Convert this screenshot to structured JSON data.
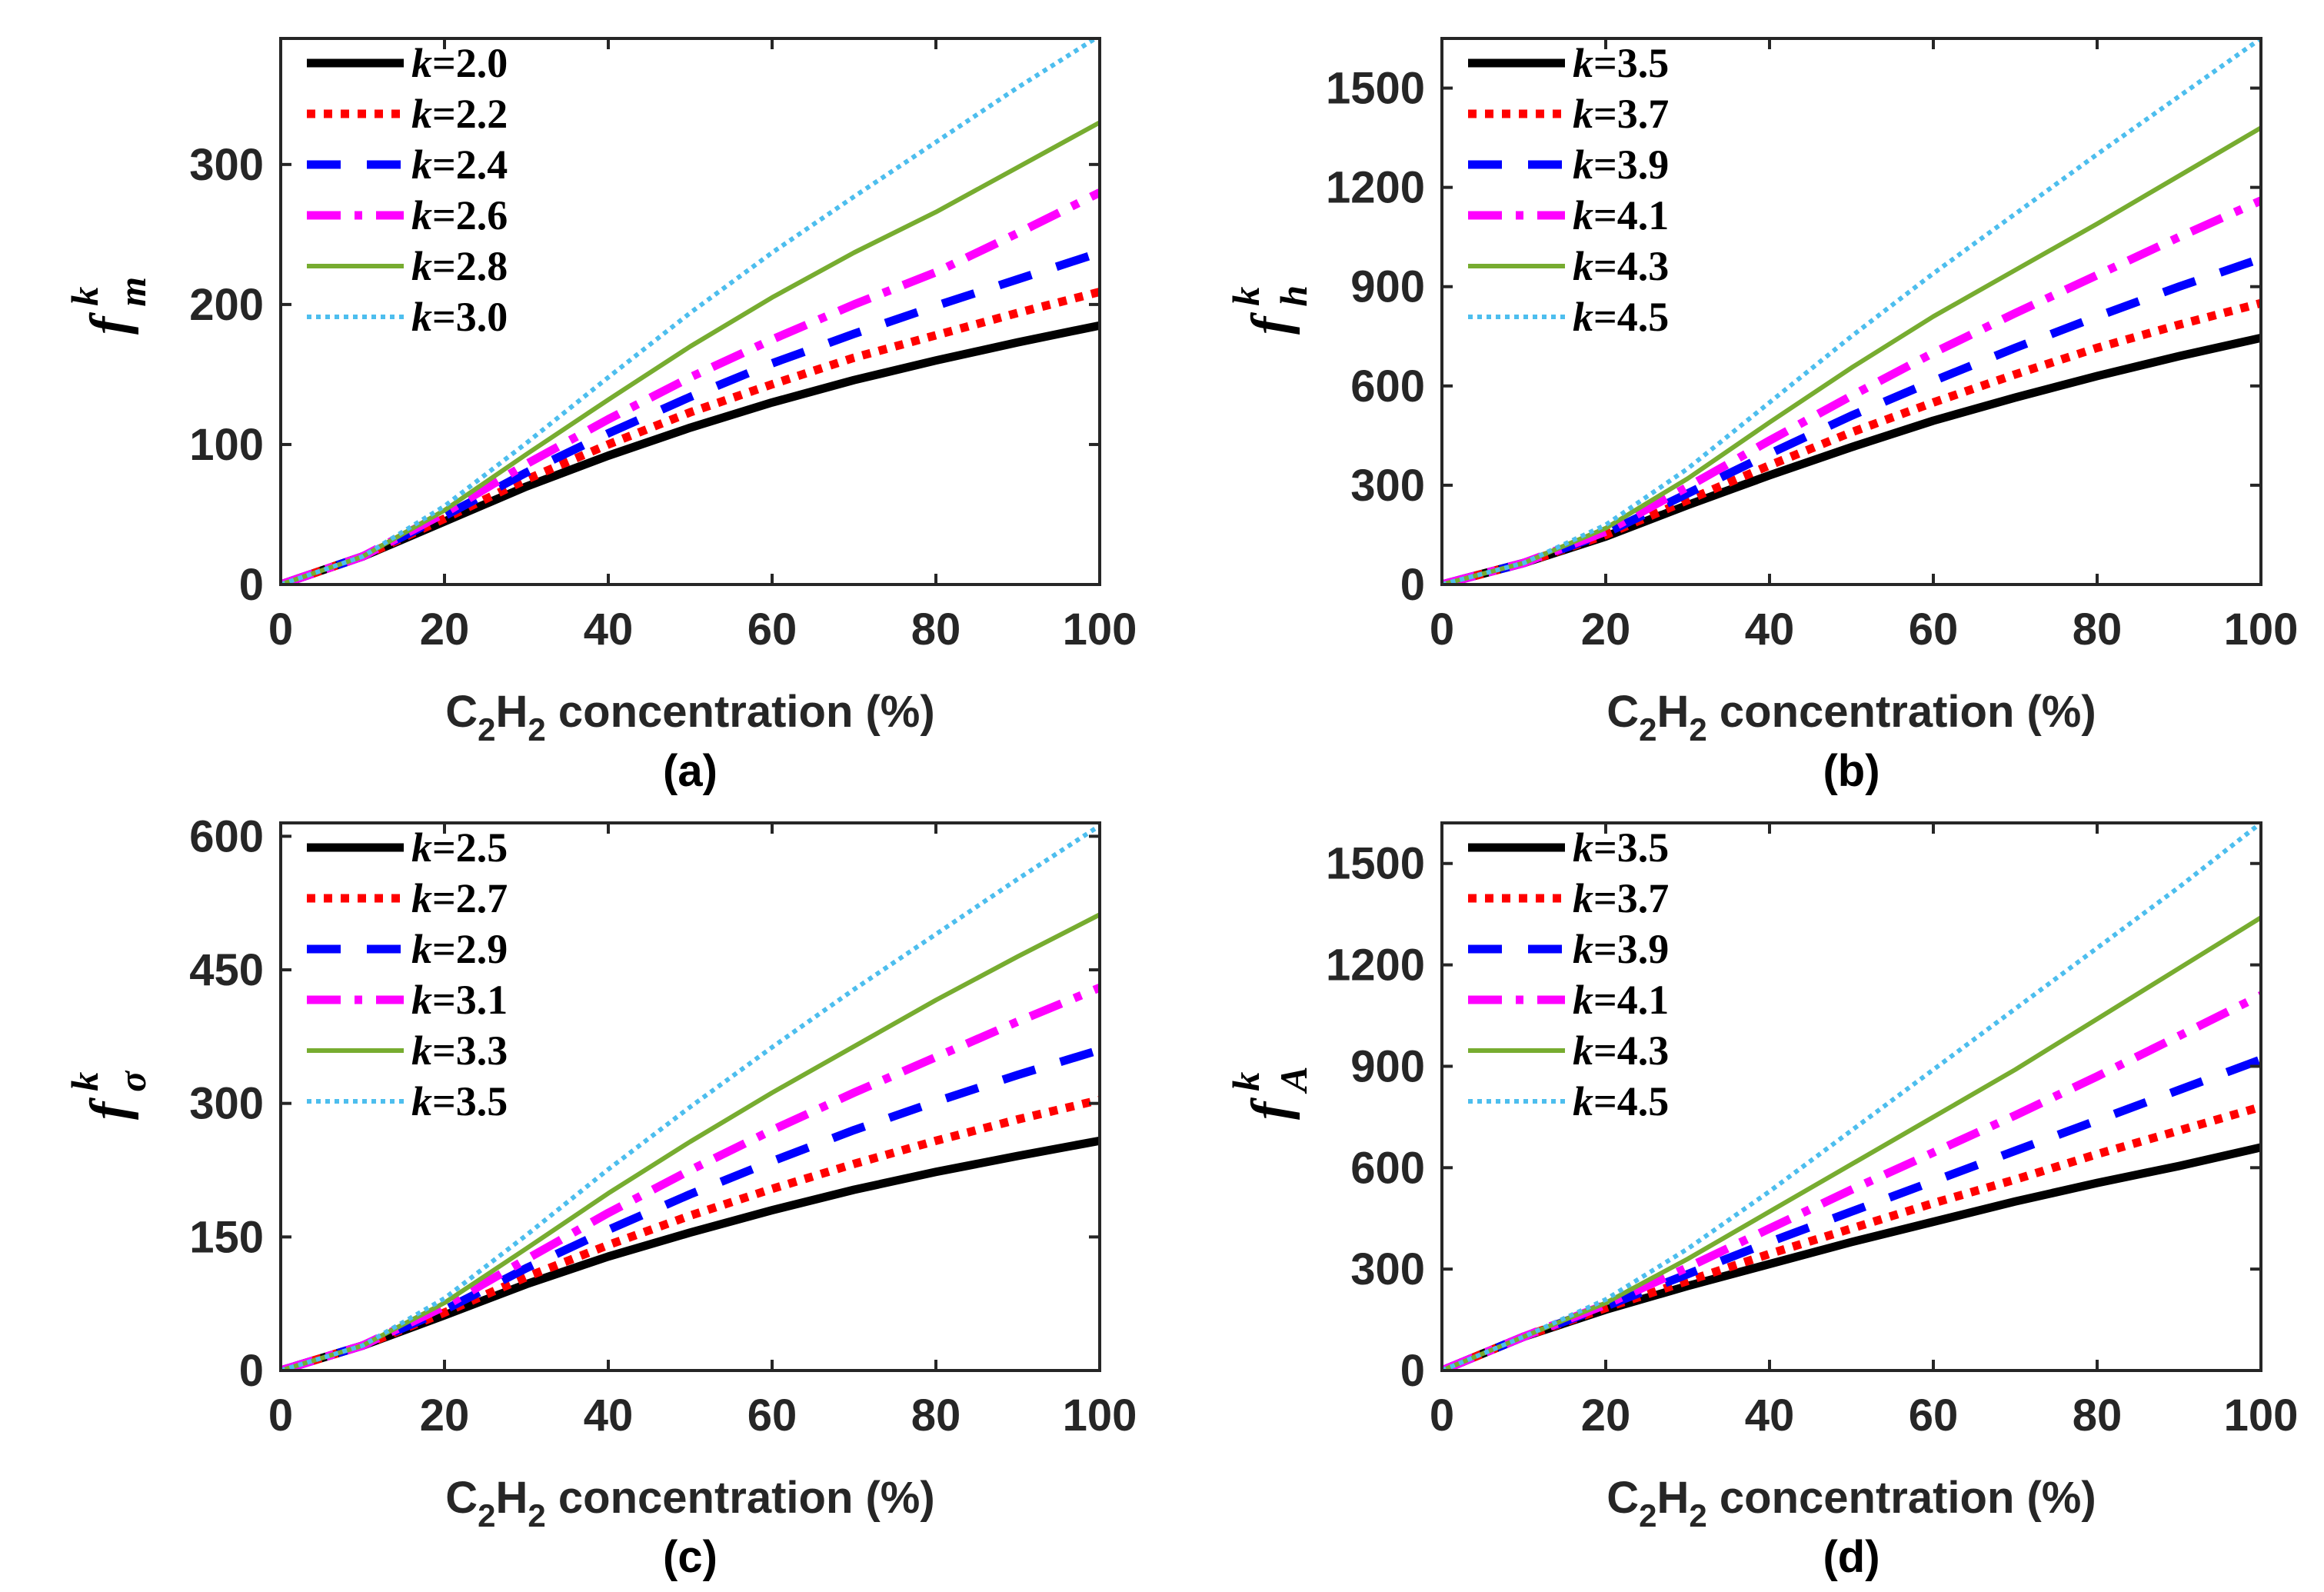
{
  "chart_data": [
    {
      "type": "line",
      "panel": "(a)",
      "ylabel": {
        "base": "f",
        "sup": "k",
        "sub": "m"
      },
      "xlabel": {
        "pre": "C",
        "sub1": "2",
        "mid": "H",
        "sub2": "2",
        "post": " concentration (%)"
      },
      "xlim": [
        0,
        100
      ],
      "ylim": [
        0,
        390
      ],
      "xticks": [
        0,
        20,
        40,
        60,
        80,
        100
      ],
      "yticks": [
        0,
        100,
        200,
        300
      ],
      "legend_loc": "top-left",
      "x": [
        0,
        10,
        20,
        30,
        40,
        50,
        60,
        70,
        80,
        90,
        100
      ],
      "series": [
        {
          "name": "k=2.0",
          "k": "2.0",
          "style": "solid",
          "color": "#000000",
          "width": 11,
          "values": [
            0,
            20,
            45,
            70,
            92,
            112,
            130,
            146,
            160,
            173,
            185
          ]
        },
        {
          "name": "k=2.2",
          "k": "2.2",
          "style": "dotted",
          "color": "#ff0000",
          "width": 11,
          "values": [
            0,
            20,
            47,
            75,
            100,
            123,
            143,
            162,
            178,
            194,
            209
          ]
        },
        {
          "name": "k=2.4",
          "k": "2.4",
          "style": "dashed",
          "color": "#0000ff",
          "width": 11,
          "values": [
            0,
            20,
            49,
            80,
            108,
            134,
            158,
            179,
            199,
            218,
            237
          ]
        },
        {
          "name": "k=2.6",
          "k": "2.6",
          "style": "dashdot",
          "color": "#ff00ff",
          "width": 11,
          "values": [
            0,
            20,
            51,
            86,
            118,
            148,
            175,
            200,
            223,
            251,
            280
          ]
        },
        {
          "name": "k=2.8",
          "k": "2.8",
          "style": "solid",
          "color": "#77ac30",
          "width": 6,
          "values": [
            0,
            20,
            53,
            93,
            132,
            170,
            205,
            237,
            266,
            298,
            330
          ]
        },
        {
          "name": "k=3.0",
          "k": "3.0",
          "style": "dot",
          "color": "#4dbeee",
          "width": 6,
          "values": [
            0,
            20,
            56,
            101,
            148,
            194,
            237,
            277,
            316,
            355,
            392
          ]
        }
      ]
    },
    {
      "type": "line",
      "panel": "(b)",
      "ylabel": {
        "base": "f",
        "sup": "k",
        "sub": "h"
      },
      "xlabel": {
        "pre": "C",
        "sub1": "2",
        "mid": "H",
        "sub2": "2",
        "post": " concentration (%)"
      },
      "xlim": [
        0,
        100
      ],
      "ylim": [
        0,
        1650
      ],
      "xticks": [
        0,
        20,
        40,
        60,
        80,
        100
      ],
      "yticks": [
        0,
        300,
        600,
        900,
        1200,
        1500
      ],
      "legend_loc": "top-left",
      "x": [
        0,
        10,
        20,
        30,
        40,
        50,
        60,
        70,
        80,
        90,
        100
      ],
      "series": [
        {
          "name": "k=3.5",
          "k": "3.5",
          "style": "solid",
          "color": "#000000",
          "width": 11,
          "values": [
            0,
            65,
            145,
            240,
            330,
            415,
            495,
            565,
            630,
            690,
            745
          ]
        },
        {
          "name": "k=3.7",
          "k": "3.7",
          "style": "dotted",
          "color": "#ff0000",
          "width": 11,
          "values": [
            0,
            65,
            150,
            255,
            360,
            460,
            550,
            635,
            715,
            785,
            850
          ]
        },
        {
          "name": "k=3.9",
          "k": "3.9",
          "style": "dashed",
          "color": "#0000ff",
          "width": 11,
          "values": [
            0,
            65,
            155,
            275,
            395,
            510,
            615,
            715,
            810,
            900,
            985
          ]
        },
        {
          "name": "k=4.1",
          "k": "4.1",
          "style": "dashdot",
          "color": "#ff00ff",
          "width": 11,
          "values": [
            0,
            65,
            160,
            295,
            435,
            570,
            700,
            820,
            935,
            1050,
            1160
          ]
        },
        {
          "name": "k=4.3",
          "k": "4.3",
          "style": "solid",
          "color": "#77ac30",
          "width": 6,
          "values": [
            0,
            65,
            170,
            320,
            490,
            655,
            810,
            950,
            1090,
            1235,
            1380
          ]
        },
        {
          "name": "k=4.5",
          "k": "4.5",
          "style": "dot",
          "color": "#4dbeee",
          "width": 6,
          "values": [
            0,
            65,
            180,
            350,
            550,
            750,
            940,
            1120,
            1300,
            1475,
            1650
          ]
        }
      ]
    },
    {
      "type": "line",
      "panel": "(c)",
      "ylabel": {
        "base": "f",
        "sup": "k",
        "sub": "σ"
      },
      "xlabel": {
        "pre": "C",
        "sub1": "2",
        "mid": "H",
        "sub2": "2",
        "post": " concentration (%)"
      },
      "xlim": [
        0,
        100
      ],
      "ylim": [
        0,
        615
      ],
      "xticks": [
        0,
        20,
        40,
        60,
        80,
        100
      ],
      "yticks": [
        0,
        150,
        300,
        450,
        600
      ],
      "legend_loc": "top-left",
      "x": [
        0,
        10,
        20,
        30,
        40,
        50,
        60,
        70,
        80,
        90,
        100
      ],
      "series": [
        {
          "name": "k=2.5",
          "k": "2.5",
          "style": "solid",
          "color": "#000000",
          "width": 11,
          "values": [
            0,
            28,
            62,
            97,
            128,
            155,
            180,
            203,
            223,
            241,
            258
          ]
        },
        {
          "name": "k=2.7",
          "k": "2.7",
          "style": "dotted",
          "color": "#ff0000",
          "width": 11,
          "values": [
            0,
            28,
            65,
            105,
            141,
            174,
            204,
            232,
            258,
            282,
            304
          ]
        },
        {
          "name": "k=2.9",
          "k": "2.9",
          "style": "dashed",
          "color": "#0000ff",
          "width": 11,
          "values": [
            0,
            28,
            68,
            115,
            158,
            198,
            235,
            270,
            302,
            332,
            360
          ]
        },
        {
          "name": "k=3.1",
          "k": "3.1",
          "style": "dashdot",
          "color": "#ff00ff",
          "width": 11,
          "values": [
            0,
            28,
            72,
            125,
            177,
            225,
            270,
            312,
            352,
            392,
            430
          ]
        },
        {
          "name": "k=3.3",
          "k": "3.3",
          "style": "solid",
          "color": "#77ac30",
          "width": 6,
          "values": [
            0,
            28,
            76,
            137,
            199,
            257,
            312,
            364,
            416,
            465,
            512
          ]
        },
        {
          "name": "k=3.5",
          "k": "3.5",
          "style": "dot",
          "color": "#4dbeee",
          "width": 6,
          "values": [
            0,
            28,
            81,
            152,
            226,
            296,
            363,
            428,
            490,
            552,
            612
          ]
        }
      ]
    },
    {
      "type": "line",
      "panel": "(d)",
      "ylabel": {
        "base": "f",
        "sup": "k",
        "sub": "A"
      },
      "xlabel": {
        "pre": "C",
        "sub1": "2",
        "mid": "H",
        "sub2": "2",
        "post": " concentration (%)"
      },
      "xlim": [
        0,
        100
      ],
      "ylim": [
        0,
        1620
      ],
      "xticks": [
        0,
        20,
        40,
        60,
        80,
        100
      ],
      "yticks": [
        0,
        300,
        600,
        900,
        1200,
        1500
      ],
      "legend_loc": "top-left",
      "x": [
        0,
        10,
        20,
        30,
        40,
        50,
        60,
        70,
        80,
        90,
        100
      ],
      "series": [
        {
          "name": "k=3.5",
          "k": "3.5",
          "style": "solid",
          "color": "#000000",
          "width": 11,
          "values": [
            0,
            100,
            180,
            250,
            315,
            380,
            440,
            500,
            555,
            605,
            660
          ]
        },
        {
          "name": "k=3.7",
          "k": "3.7",
          "style": "dotted",
          "color": "#ff0000",
          "width": 11,
          "values": [
            0,
            100,
            185,
            265,
            345,
            420,
            495,
            565,
            640,
            710,
            780
          ]
        },
        {
          "name": "k=3.9",
          "k": "3.9",
          "style": "dashed",
          "color": "#0000ff",
          "width": 11,
          "values": [
            0,
            100,
            190,
            285,
            380,
            470,
            560,
            650,
            740,
            830,
            920
          ]
        },
        {
          "name": "k=4.1",
          "k": "4.1",
          "style": "dashdot",
          "color": "#ff00ff",
          "width": 11,
          "values": [
            0,
            100,
            195,
            305,
            420,
            535,
            645,
            755,
            870,
            990,
            1110
          ]
        },
        {
          "name": "k=4.3",
          "k": "4.3",
          "style": "solid",
          "color": "#77ac30",
          "width": 6,
          "values": [
            0,
            100,
            200,
            330,
            470,
            610,
            750,
            890,
            1040,
            1190,
            1340
          ]
        },
        {
          "name": "k=4.5",
          "k": "4.5",
          "style": "dot",
          "color": "#4dbeee",
          "width": 6,
          "values": [
            0,
            100,
            210,
            360,
            530,
            710,
            890,
            1070,
            1250,
            1430,
            1620
          ]
        }
      ]
    }
  ]
}
